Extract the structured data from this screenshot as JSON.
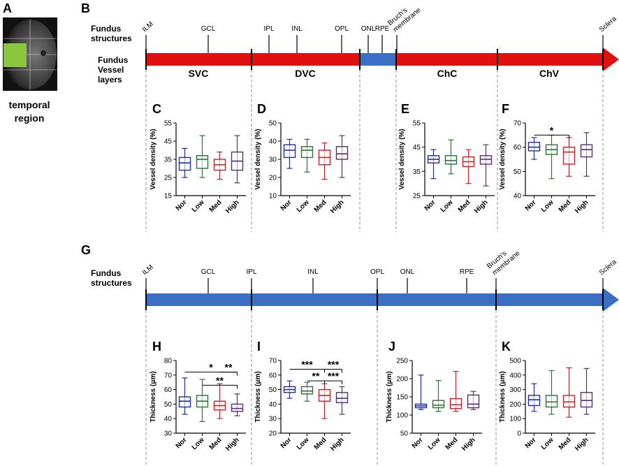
{
  "panel_a": {
    "letter": "A",
    "caption": [
      "temporal",
      "region"
    ]
  },
  "top_diagram": {
    "letter": "B",
    "row_labels": [
      [
        "Fundus",
        "structures"
      ],
      [
        "Fundus",
        "Vessel",
        "layers"
      ]
    ],
    "markers": [
      [
        "ILM"
      ],
      [
        "GCL"
      ],
      [
        "IPL"
      ],
      [
        "INL"
      ],
      [
        "OPL"
      ],
      [
        "ONL"
      ],
      [
        "RPE"
      ],
      [
        "Bruch's",
        "membrane"
      ],
      [
        "Sclera"
      ]
    ],
    "layers": [
      "SVC",
      "DVC",
      "ChC",
      "ChV"
    ]
  },
  "bottom_diagram": {
    "letter": "G",
    "row_labels": [
      [
        "Fundus",
        "structures"
      ]
    ],
    "markers": [
      [
        "ILM"
      ],
      [
        "GCL"
      ],
      [
        "IPL"
      ],
      [
        "INL"
      ],
      [
        "OPL"
      ],
      [
        "ONL"
      ],
      [
        "RPE"
      ],
      [
        "Bruch's",
        "membrane"
      ],
      [
        "Sclera"
      ]
    ]
  },
  "chart_data": [
    {
      "type": "box",
      "letter": "C",
      "ylabel": "Vessel density (%)",
      "categories": [
        "Nor",
        "Low",
        "Med",
        "High"
      ],
      "colors": [
        "#1f2f9e",
        "#1e7a2f",
        "#c0262d",
        "#5b2a7a"
      ],
      "ylim": [
        15,
        55
      ],
      "yticks": [
        15,
        25,
        35,
        45,
        55
      ],
      "boxes": [
        {
          "min": 25,
          "q1": 29,
          "median": 33,
          "q3": 36,
          "max": 41
        },
        {
          "min": 25,
          "q1": 30,
          "median": 35,
          "q3": 37,
          "max": 48
        },
        {
          "min": 24,
          "q1": 29,
          "median": 32,
          "q3": 35,
          "max": 39
        },
        {
          "min": 22,
          "q1": 29,
          "median": 34,
          "q3": 39,
          "max": 48
        }
      ],
      "brackets": []
    },
    {
      "type": "box",
      "letter": "D",
      "ylabel": "Vessel density (%)",
      "categories": [
        "Nor",
        "Low",
        "Med",
        "High"
      ],
      "colors": [
        "#1f2f9e",
        "#1e7a2f",
        "#c0262d",
        "#5b2a7a"
      ],
      "ylim": [
        10,
        50
      ],
      "yticks": [
        10,
        20,
        30,
        40,
        50
      ],
      "boxes": [
        {
          "min": 25,
          "q1": 31,
          "median": 35,
          "q3": 38,
          "max": 41
        },
        {
          "min": 23,
          "q1": 31,
          "median": 35,
          "q3": 37,
          "max": 41
        },
        {
          "min": 19,
          "q1": 27,
          "median": 31,
          "q3": 35,
          "max": 39
        },
        {
          "min": 20,
          "q1": 30,
          "median": 33,
          "q3": 37,
          "max": 43
        }
      ],
      "brackets": []
    },
    {
      "type": "box",
      "letter": "E",
      "ylabel": "Vessel density (%)",
      "categories": [
        "Nor",
        "Low",
        "Med",
        "High"
      ],
      "colors": [
        "#1f2f9e",
        "#1e7a2f",
        "#c0262d",
        "#5b2a7a"
      ],
      "ylim": [
        25,
        55
      ],
      "yticks": [
        25,
        35,
        45,
        55
      ],
      "boxes": [
        {
          "min": 32,
          "q1": 38.5,
          "median": 40,
          "q3": 41.5,
          "max": 44
        },
        {
          "min": 34,
          "q1": 38,
          "median": 39.5,
          "q3": 41.5,
          "max": 48
        },
        {
          "min": 30,
          "q1": 37,
          "median": 39,
          "q3": 41,
          "max": 44
        },
        {
          "min": 29,
          "q1": 38,
          "median": 40,
          "q3": 41.5,
          "max": 46
        }
      ],
      "brackets": []
    },
    {
      "type": "box",
      "letter": "F",
      "ylabel": "Vessel density (%)",
      "categories": [
        "Nor",
        "Low",
        "Med",
        "High"
      ],
      "colors": [
        "#1f2f9e",
        "#1e7a2f",
        "#c0262d",
        "#5b2a7a"
      ],
      "ylim": [
        40,
        70
      ],
      "yticks": [
        40,
        50,
        60,
        70
      ],
      "boxes": [
        {
          "min": 55,
          "q1": 58.5,
          "median": 60,
          "q3": 62,
          "max": 64
        },
        {
          "min": 47,
          "q1": 57,
          "median": 59,
          "q3": 61,
          "max": 65
        },
        {
          "min": 48,
          "q1": 53,
          "median": 58,
          "q3": 60,
          "max": 64
        },
        {
          "min": 48,
          "q1": 56,
          "median": 59,
          "q3": 61,
          "max": 66
        }
      ],
      "brackets": [
        {
          "from": "Nor",
          "to": "Med",
          "y": 65,
          "label": "*"
        }
      ]
    },
    {
      "type": "box",
      "letter": "H",
      "ylabel": "Thickness (μm)",
      "categories": [
        "Nor",
        "Low",
        "Med",
        "High"
      ],
      "colors": [
        "#1f2f9e",
        "#1e7a2f",
        "#c0262d",
        "#5b2a7a"
      ],
      "ylim": [
        30,
        80
      ],
      "yticks": [
        30,
        40,
        50,
        60,
        70,
        80
      ],
      "boxes": [
        {
          "min": 43,
          "q1": 48,
          "median": 52,
          "q3": 55,
          "max": 68
        },
        {
          "min": 38,
          "q1": 48,
          "median": 52,
          "q3": 56,
          "max": 67
        },
        {
          "min": 40,
          "q1": 46,
          "median": 49,
          "q3": 52,
          "max": 64
        },
        {
          "min": 42,
          "q1": 45,
          "median": 47,
          "q3": 50,
          "max": 57
        }
      ],
      "brackets": [
        {
          "from": "Nor",
          "to": "High",
          "y": 72,
          "label": "*"
        },
        {
          "from": "Med",
          "to": "High",
          "y": 72,
          "label": "**"
        },
        {
          "from": "Low",
          "to": "High",
          "y": 63,
          "label": "**"
        }
      ]
    },
    {
      "type": "box",
      "letter": "I",
      "ylabel": "Thickness (μm)",
      "categories": [
        "Nor",
        "Low",
        "Med",
        "High"
      ],
      "colors": [
        "#1f2f9e",
        "#1e7a2f",
        "#c0262d",
        "#5b2a7a"
      ],
      "ylim": [
        20,
        70
      ],
      "yticks": [
        20,
        30,
        40,
        50,
        60,
        70
      ],
      "boxes": [
        {
          "min": 44,
          "q1": 48,
          "median": 50,
          "q3": 52,
          "max": 56
        },
        {
          "min": 42,
          "q1": 47,
          "median": 49,
          "q3": 52,
          "max": 55
        },
        {
          "min": 30,
          "q1": 42,
          "median": 46,
          "q3": 50,
          "max": 54
        },
        {
          "min": 33,
          "q1": 41,
          "median": 44,
          "q3": 48,
          "max": 52
        }
      ],
      "brackets": [
        {
          "from": "Nor",
          "to": "Med",
          "y": 64,
          "label": "***"
        },
        {
          "from": "Med",
          "to": "High",
          "y": 64,
          "label": "***"
        },
        {
          "from": "Low",
          "to": "Med",
          "y": 56,
          "label": "**"
        },
        {
          "from": "Med",
          "to": "High",
          "y": 56,
          "label": "***"
        }
      ]
    },
    {
      "type": "box",
      "letter": "J",
      "ylabel": "Thickness (μm)",
      "categories": [
        "Nor",
        "Low",
        "Med",
        "High"
      ],
      "colors": [
        "#1f2f9e",
        "#1e7a2f",
        "#c0262d",
        "#5b2a7a"
      ],
      "ylim": [
        50,
        250
      ],
      "yticks": [
        50,
        100,
        150,
        200,
        250
      ],
      "boxes": [
        {
          "min": 115,
          "q1": 120,
          "median": 125,
          "q3": 130,
          "max": 210
        },
        {
          "min": 110,
          "q1": 120,
          "median": 127,
          "q3": 140,
          "max": 195
        },
        {
          "min": 110,
          "q1": 118,
          "median": 128,
          "q3": 145,
          "max": 220
        },
        {
          "min": 115,
          "q1": 120,
          "median": 130,
          "q3": 155,
          "max": 165
        }
      ],
      "brackets": []
    },
    {
      "type": "box",
      "letter": "K",
      "ylabel": "Thickness (μm)",
      "categories": [
        "Nor",
        "Low",
        "Med",
        "High"
      ],
      "colors": [
        "#1f2f9e",
        "#1e7a2f",
        "#c0262d",
        "#5b2a7a"
      ],
      "ylim": [
        0,
        500
      ],
      "yticks": [
        0,
        100,
        200,
        300,
        400,
        500
      ],
      "boxes": [
        {
          "min": 150,
          "q1": 190,
          "median": 230,
          "q3": 260,
          "max": 340
        },
        {
          "min": 130,
          "q1": 180,
          "median": 215,
          "q3": 260,
          "max": 430
        },
        {
          "min": 110,
          "q1": 180,
          "median": 215,
          "q3": 260,
          "max": 450
        },
        {
          "min": 130,
          "q1": 180,
          "median": 225,
          "q3": 280,
          "max": 445
        }
      ],
      "brackets": []
    }
  ]
}
